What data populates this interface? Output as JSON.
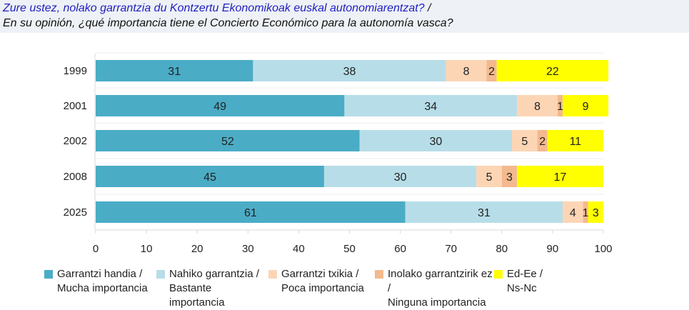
{
  "header": {
    "title_basque": "Zure ustez, nolako garrantzia du Kontzertu Ekonomikoak euskal autonomiarentzat?",
    "title_sep": " /",
    "title_spanish": "En su opinión, ¿qué importancia tiene el Concierto Económico para la autonomía vasca?"
  },
  "chart_data": {
    "type": "bar",
    "orientation": "horizontal",
    "stacked": true,
    "categories": [
      "1999",
      "2001",
      "2002",
      "2008",
      "2025"
    ],
    "series": [
      {
        "name": "Garrantzi handia / Mucha importancia",
        "name_line1": "Garrantzi handia /",
        "name_line2": "Mucha importancia",
        "color": "#4bacc6",
        "values": [
          31,
          49,
          52,
          45,
          61
        ]
      },
      {
        "name": "Nahiko garrantzia / Bastante importancia",
        "name_line1": "Nahiko garrantzia /",
        "name_line2": "Bastante importancia",
        "color": "#b7dee8",
        "values": [
          38,
          34,
          30,
          30,
          31
        ]
      },
      {
        "name": "Garrantzi txikia / Poca importancia",
        "name_line1": "Garrantzi txikia /",
        "name_line2": "Poca importancia",
        "color": "#fcd5b5",
        "values": [
          8,
          8,
          5,
          5,
          4
        ]
      },
      {
        "name": "Inolako garrantzirik ez / Ninguna importancia",
        "name_line1": "Inolako garrantzirik ez /",
        "name_line2": "Ninguna importancia",
        "color": "#f4b98e",
        "values": [
          2,
          1,
          2,
          3,
          1
        ]
      },
      {
        "name": "Ed-Ee / Ns-Nc",
        "name_line1": "Ed-Ee /",
        "name_line2": "Ns-Nc",
        "color": "#ffff00",
        "values": [
          22,
          9,
          11,
          17,
          3
        ]
      }
    ],
    "xlim": [
      0,
      100
    ],
    "xticks": [
      0,
      10,
      20,
      30,
      40,
      50,
      60,
      70,
      80,
      90,
      100
    ],
    "legend_position": "bottom",
    "grid": false
  }
}
